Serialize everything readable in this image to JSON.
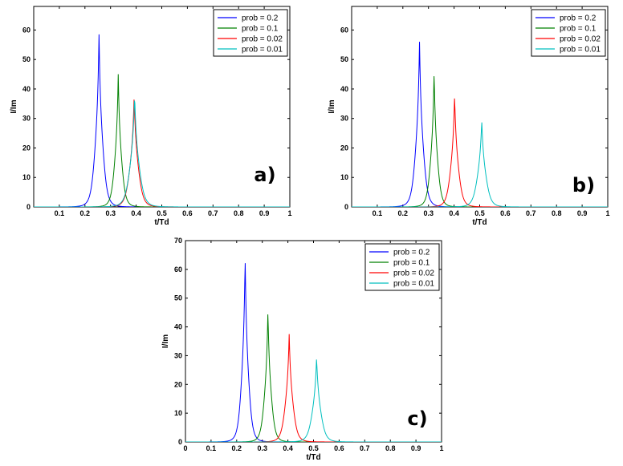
{
  "chart_data": [
    {
      "type": "line",
      "panel_label": "a)",
      "xlabel": "t/Td",
      "ylabel": "I/Im",
      "xlim": [
        0,
        1
      ],
      "ylim": [
        0,
        68
      ],
      "xticks": [
        "0.1",
        "0.2",
        "0.3",
        "0.4",
        "0.5",
        "0.6",
        "0.7",
        "0.8",
        "0.9",
        "1"
      ],
      "yticks": [
        "0",
        "10",
        "20",
        "30",
        "40",
        "50",
        "60"
      ],
      "legend_position": "top-right",
      "series": [
        {
          "name": "prob = 0.2",
          "color": "#0000ff",
          "peak_x": 0.255,
          "peak_y": 58.5,
          "width": 0.018
        },
        {
          "name": "prob = 0.1",
          "color": "#008000",
          "peak_x": 0.33,
          "peak_y": 45,
          "width": 0.016
        },
        {
          "name": "prob = 0.02",
          "color": "#ff0000",
          "peak_x": 0.392,
          "peak_y": 37.5,
          "width": 0.02
        },
        {
          "name": "prob = 0.01",
          "color": "#00bfbf",
          "peak_x": 0.394,
          "peak_y": 38,
          "width": 0.022
        }
      ]
    },
    {
      "type": "line",
      "panel_label": "b)",
      "xlabel": "t/Td",
      "ylabel": "I/Im",
      "xlim": [
        0,
        1
      ],
      "ylim": [
        0,
        68
      ],
      "xticks": [
        "0.1",
        "0.2",
        "0.3",
        "0.4",
        "0.5",
        "0.6",
        "0.7",
        "0.8",
        "0.9",
        "1"
      ],
      "yticks": [
        "0",
        "10",
        "20",
        "30",
        "40",
        "50",
        "60"
      ],
      "legend_position": "top-right",
      "series": [
        {
          "name": "prob = 0.2",
          "color": "#0000ff",
          "peak_x": 0.265,
          "peak_y": 56,
          "width": 0.018
        },
        {
          "name": "prob = 0.1",
          "color": "#008000",
          "peak_x": 0.322,
          "peak_y": 46,
          "width": 0.016
        },
        {
          "name": "prob = 0.02",
          "color": "#ff0000",
          "peak_x": 0.402,
          "peak_y": 38,
          "width": 0.018
        },
        {
          "name": "prob = 0.01",
          "color": "#00bfbf",
          "peak_x": 0.508,
          "peak_y": 29.5,
          "width": 0.02
        }
      ]
    },
    {
      "type": "line",
      "panel_label": "c)",
      "xlabel": "t/Td",
      "ylabel": "I/Im",
      "xlim": [
        0,
        1
      ],
      "ylim": [
        0,
        70
      ],
      "xticks": [
        "0",
        "0.1",
        "0.2",
        "0.3",
        "0.4",
        "0.5",
        "0.6",
        "0.7",
        "0.8",
        "0.9",
        "1"
      ],
      "yticks": [
        "0",
        "10",
        "20",
        "30",
        "40",
        "50",
        "60",
        "70"
      ],
      "legend_position": "top-right",
      "series": [
        {
          "name": "prob = 0.2",
          "color": "#0000ff",
          "peak_x": 0.233,
          "peak_y": 64.5,
          "width": 0.016
        },
        {
          "name": "prob = 0.1",
          "color": "#008000",
          "peak_x": 0.322,
          "peak_y": 46,
          "width": 0.016
        },
        {
          "name": "prob = 0.02",
          "color": "#ff0000",
          "peak_x": 0.405,
          "peak_y": 37.5,
          "width": 0.018
        },
        {
          "name": "prob = 0.01",
          "color": "#00bfbf",
          "peak_x": 0.512,
          "peak_y": 29.5,
          "width": 0.02
        }
      ]
    }
  ]
}
